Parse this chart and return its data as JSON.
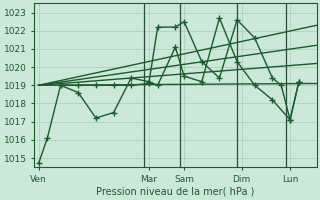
{
  "background_color": "#cce8d8",
  "grid_color": "#aaccbb",
  "line_color": "#1a5c2a",
  "ylim": [
    1014.5,
    1023.5
  ],
  "yticks": [
    1015,
    1016,
    1017,
    1018,
    1019,
    1020,
    1021,
    1022,
    1023
  ],
  "xlabel": "Pression niveau de la mer( hPa )",
  "xtick_labels": [
    "Ven",
    "Mar",
    "Sam",
    "Dim",
    "Lun"
  ],
  "xtick_positions": [
    0.5,
    13,
    17,
    23.5,
    29
  ],
  "xlim": [
    0,
    32
  ],
  "vline_positions": [
    12.5,
    16.5,
    23,
    28.5
  ],
  "vline_color": "#2a4a3a",
  "vline_linewidth": 0.9,
  "series": [
    {
      "x": [
        0.5,
        1.5,
        3,
        5,
        7,
        9,
        11,
        13,
        14,
        16,
        17,
        19,
        21,
        23,
        25,
        27,
        28,
        29,
        30
      ],
      "y": [
        1014.7,
        1016.1,
        1019.0,
        1019.0,
        1019.0,
        1019.0,
        1019.0,
        1019.1,
        1022.2,
        1022.2,
        1022.5,
        1020.3,
        1019.4,
        1022.6,
        1021.6,
        1019.4,
        1019.0,
        1017.1,
        1019.2
      ],
      "marker": "+",
      "markersize": 4,
      "linewidth": 1.0,
      "linestyle": "-"
    },
    {
      "x": [
        3,
        5,
        7,
        9,
        11,
        13,
        14,
        16,
        17,
        19,
        21,
        23,
        25,
        27,
        29,
        30
      ],
      "y": [
        1019.0,
        1018.6,
        1017.2,
        1017.5,
        1019.4,
        1019.2,
        1019.0,
        1021.1,
        1019.5,
        1019.2,
        1022.7,
        1020.3,
        1019.0,
        1018.2,
        1017.1,
        1019.2
      ],
      "marker": "+",
      "markersize": 4,
      "linewidth": 1.0,
      "linestyle": "-"
    },
    {
      "x": [
        0.5,
        32
      ],
      "y": [
        1019.0,
        1019.1
      ],
      "marker": null,
      "markersize": 0,
      "linewidth": 1.0,
      "linestyle": "-"
    },
    {
      "x": [
        0.5,
        32
      ],
      "y": [
        1019.0,
        1022.3
      ],
      "marker": null,
      "markersize": 0,
      "linewidth": 1.0,
      "linestyle": "-"
    },
    {
      "x": [
        0.5,
        32
      ],
      "y": [
        1019.0,
        1021.2
      ],
      "marker": null,
      "markersize": 0,
      "linewidth": 1.0,
      "linestyle": "-"
    },
    {
      "x": [
        0.5,
        32
      ],
      "y": [
        1019.0,
        1020.2
      ],
      "marker": null,
      "markersize": 0,
      "linewidth": 1.0,
      "linestyle": "-"
    }
  ]
}
